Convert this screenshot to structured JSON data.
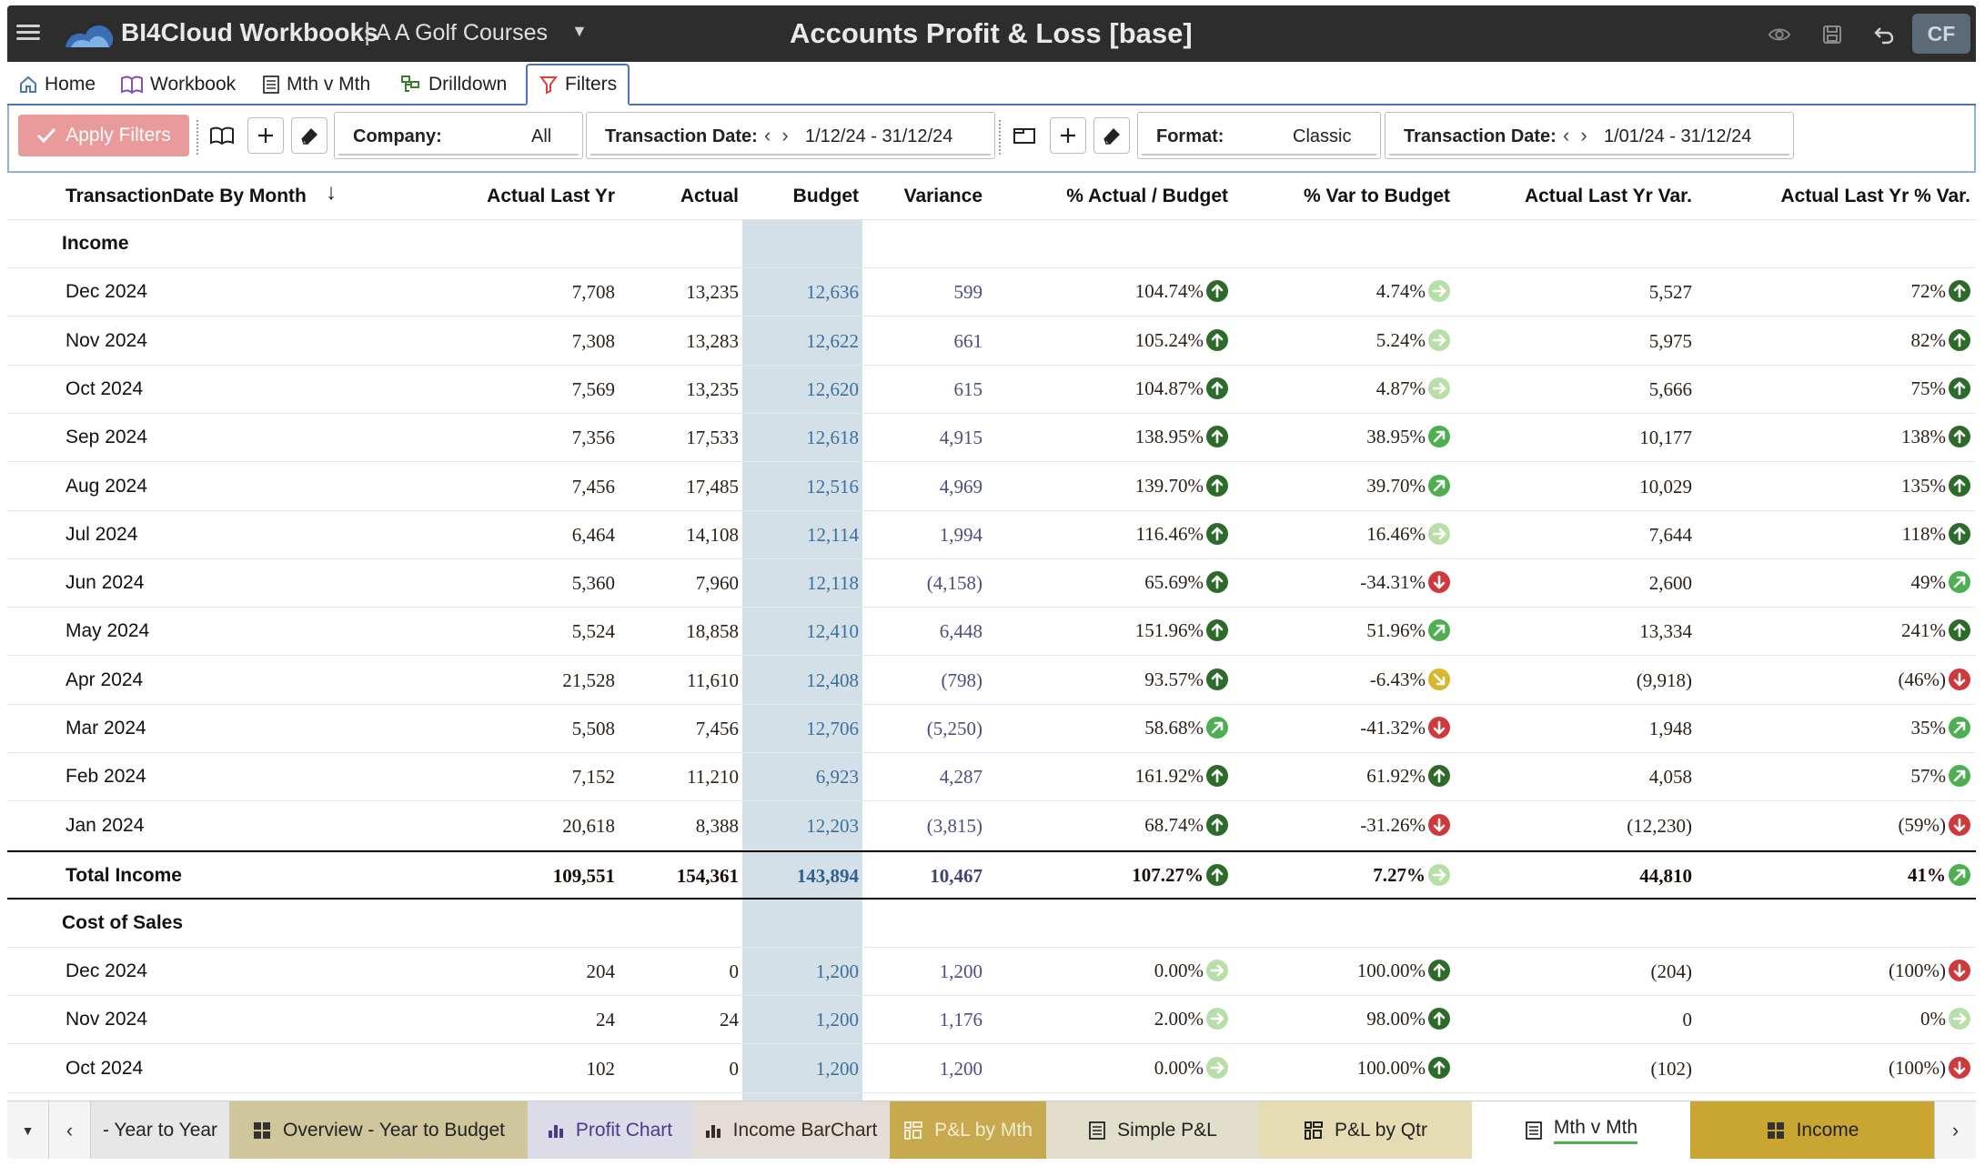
{
  "app": {
    "title": "BI4Cloud Workbooks",
    "separator": "|",
    "subtitle": "A A Golf Courses",
    "document_title": "Accounts Profit & Loss [base]",
    "user_initials": "CF"
  },
  "nav_tabs": [
    {
      "label": "Home",
      "icon": "home-icon"
    },
    {
      "label": "Workbook",
      "icon": "book-icon"
    },
    {
      "label": "Mth v Mth",
      "icon": "list-icon"
    },
    {
      "label": "Drilldown",
      "icon": "drilldown-icon"
    },
    {
      "label": "Filters",
      "icon": "filter-icon",
      "active": true
    }
  ],
  "filterbar": {
    "apply_label": "Apply Filters",
    "company_label": "Company:",
    "company_value": "All",
    "date1_label": "Transaction Date:",
    "date1_value": "1/12/24 - 31/12/24",
    "format_label": "Format:",
    "format_value": "Classic",
    "date2_label": "Transaction Date:",
    "date2_value": "1/01/24 - 31/12/24"
  },
  "table": {
    "headers": {
      "period": "TransactionDate By Month",
      "actual_last_yr": "Actual Last Yr",
      "actual": "Actual",
      "budget": "Budget",
      "variance": "Variance",
      "pct_actual_budget": "% Actual / Budget",
      "pct_var_budget": "% Var to Budget",
      "last_yr_var": "Actual Last Yr Var.",
      "last_yr_pct_var": "Actual Last Yr % Var."
    },
    "income_label": "Income",
    "income_rows": [
      {
        "period": "Dec 2024",
        "actual_last_yr": "7,708",
        "actual": "13,235",
        "budget": "12,636",
        "variance": "599",
        "pct_actual_budget": "104.74%",
        "ind1": "up-dark",
        "pct_var_budget": "4.74%",
        "ind2": "right-light",
        "last_yr_var": "5,527",
        "last_yr_pct_var": "72%",
        "ind3": "up-dark"
      },
      {
        "period": "Nov 2024",
        "actual_last_yr": "7,308",
        "actual": "13,283",
        "budget": "12,622",
        "variance": "661",
        "pct_actual_budget": "105.24%",
        "ind1": "up-dark",
        "pct_var_budget": "5.24%",
        "ind2": "right-light",
        "last_yr_var": "5,975",
        "last_yr_pct_var": "82%",
        "ind3": "up-dark"
      },
      {
        "period": "Oct 2024",
        "actual_last_yr": "7,569",
        "actual": "13,235",
        "budget": "12,620",
        "variance": "615",
        "pct_actual_budget": "104.87%",
        "ind1": "up-dark",
        "pct_var_budget": "4.87%",
        "ind2": "right-light",
        "last_yr_var": "5,666",
        "last_yr_pct_var": "75%",
        "ind3": "up-dark"
      },
      {
        "period": "Sep 2024",
        "actual_last_yr": "7,356",
        "actual": "17,533",
        "budget": "12,618",
        "variance": "4,915",
        "pct_actual_budget": "138.95%",
        "ind1": "up-dark",
        "pct_var_budget": "38.95%",
        "ind2": "upright-mid",
        "last_yr_var": "10,177",
        "last_yr_pct_var": "138%",
        "ind3": "up-dark"
      },
      {
        "period": "Aug 2024",
        "actual_last_yr": "7,456",
        "actual": "17,485",
        "budget": "12,516",
        "variance": "4,969",
        "pct_actual_budget": "139.70%",
        "ind1": "up-dark",
        "pct_var_budget": "39.70%",
        "ind2": "upright-mid",
        "last_yr_var": "10,029",
        "last_yr_pct_var": "135%",
        "ind3": "up-dark"
      },
      {
        "period": "Jul 2024",
        "actual_last_yr": "6,464",
        "actual": "14,108",
        "budget": "12,114",
        "variance": "1,994",
        "pct_actual_budget": "116.46%",
        "ind1": "up-dark",
        "pct_var_budget": "16.46%",
        "ind2": "right-light",
        "last_yr_var": "7,644",
        "last_yr_pct_var": "118%",
        "ind3": "up-dark"
      },
      {
        "period": "Jun 2024",
        "actual_last_yr": "5,360",
        "actual": "7,960",
        "budget": "12,118",
        "variance": "(4,158)",
        "pct_actual_budget": "65.69%",
        "ind1": "up-dark",
        "pct_var_budget": "-34.31%",
        "ind2": "down-red",
        "last_yr_var": "2,600",
        "last_yr_pct_var": "49%",
        "ind3": "upright-mid"
      },
      {
        "period": "May 2024",
        "actual_last_yr": "5,524",
        "actual": "18,858",
        "budget": "12,410",
        "variance": "6,448",
        "pct_actual_budget": "151.96%",
        "ind1": "up-dark",
        "pct_var_budget": "51.96%",
        "ind2": "upright-mid",
        "last_yr_var": "13,334",
        "last_yr_pct_var": "241%",
        "ind3": "up-dark"
      },
      {
        "period": "Apr 2024",
        "actual_last_yr": "21,528",
        "actual": "11,610",
        "budget": "12,408",
        "variance": "(798)",
        "pct_actual_budget": "93.57%",
        "ind1": "up-dark",
        "pct_var_budget": "-6.43%",
        "ind2": "downright-yellow",
        "last_yr_var": "(9,918)",
        "last_yr_pct_var": "(46%)",
        "ind3": "down-red"
      },
      {
        "period": "Mar 2024",
        "actual_last_yr": "5,508",
        "actual": "7,456",
        "budget": "12,706",
        "variance": "(5,250)",
        "pct_actual_budget": "58.68%",
        "ind1": "upright-mid",
        "pct_var_budget": "-41.32%",
        "ind2": "down-red",
        "last_yr_var": "1,948",
        "last_yr_pct_var": "35%",
        "ind3": "upright-mid"
      },
      {
        "period": "Feb 2024",
        "actual_last_yr": "7,152",
        "actual": "11,210",
        "budget": "6,923",
        "variance": "4,287",
        "pct_actual_budget": "161.92%",
        "ind1": "up-dark",
        "pct_var_budget": "61.92%",
        "ind2": "up-dark",
        "last_yr_var": "4,058",
        "last_yr_pct_var": "57%",
        "ind3": "upright-mid"
      },
      {
        "period": "Jan 2024",
        "actual_last_yr": "20,618",
        "actual": "8,388",
        "budget": "12,203",
        "variance": "(3,815)",
        "pct_actual_budget": "68.74%",
        "ind1": "up-dark",
        "pct_var_budget": "-31.26%",
        "ind2": "down-red",
        "last_yr_var": "(12,230)",
        "last_yr_pct_var": "(59%)",
        "ind3": "down-red"
      }
    ],
    "total_income": {
      "period": "Total Income",
      "actual_last_yr": "109,551",
      "actual": "154,361",
      "budget": "143,894",
      "variance": "10,467",
      "pct_actual_budget": "107.27%",
      "ind1": "up-dark",
      "pct_var_budget": "7.27%",
      "ind2": "right-light",
      "last_yr_var": "44,810",
      "last_yr_pct_var": "41%",
      "ind3": "upright-mid"
    },
    "cos_label": "Cost of Sales",
    "cos_rows": [
      {
        "period": "Dec 2024",
        "actual_last_yr": "204",
        "actual": "0",
        "budget": "1,200",
        "variance": "1,200",
        "pct_actual_budget": "0.00%",
        "ind1": "right-light",
        "pct_var_budget": "100.00%",
        "ind2": "up-dark",
        "last_yr_var": "(204)",
        "last_yr_pct_var": "(100%)",
        "ind3": "down-red"
      },
      {
        "period": "Nov 2024",
        "actual_last_yr": "24",
        "actual": "24",
        "budget": "1,200",
        "variance": "1,176",
        "pct_actual_budget": "2.00%",
        "ind1": "right-light",
        "pct_var_budget": "98.00%",
        "ind2": "up-dark",
        "last_yr_var": "0",
        "last_yr_pct_var": "0%",
        "ind3": "right-light"
      },
      {
        "period": "Oct 2024",
        "actual_last_yr": "102",
        "actual": "0",
        "budget": "1,200",
        "variance": "1,200",
        "pct_actual_budget": "0.00%",
        "ind1": "right-light",
        "pct_var_budget": "100.00%",
        "ind2": "up-dark",
        "last_yr_var": "(102)",
        "last_yr_pct_var": "(100%)",
        "ind3": "down-red"
      }
    ]
  },
  "sheet_tabs": [
    {
      "label": "- Year to Year",
      "bg": "#e7e7e7",
      "color": "#222222",
      "icon": ""
    },
    {
      "label": "Overview - Year to Budget",
      "bg": "#cfc69b",
      "color": "#222222",
      "icon": "dashboard-icon"
    },
    {
      "label": "Profit Chart",
      "bg": "#dcdbe8",
      "color": "#4b3a8c",
      "icon": "bar-chart-icon"
    },
    {
      "label": "Income BarChart",
      "bg": "#e4ddd7",
      "color": "#3a2a22",
      "icon": "bar-chart-icon"
    },
    {
      "label": "P&L by Mth",
      "bg": "#c7a94f",
      "color": "#f3ecd4",
      "icon": "pivot-icon"
    },
    {
      "label": "Simple P&L",
      "bg": "#e1dfcb",
      "color": "#222222",
      "icon": "list-icon"
    },
    {
      "label": "P&L by Qtr",
      "bg": "#e6dcb4",
      "color": "#222222",
      "icon": "pivot-icon"
    },
    {
      "label": "Mth v Mth",
      "bg": "#ffffff",
      "color": "#222222",
      "icon": "list-icon",
      "active": true
    },
    {
      "label": "Income",
      "bg": "#c9a531",
      "color": "#222222",
      "icon": "dashboard-icon"
    }
  ],
  "colors": {
    "titlebar_bg": "#2d2d2d",
    "apply_button": "#e99a9a",
    "budget_column": "#d3e0e8",
    "indicator_dark_green": "#2e6b2a",
    "indicator_mid_green": "#4caf50",
    "indicator_light_green": "#b9dfa8",
    "indicator_red": "#d0393b",
    "indicator_yellow": "#d9b62a"
  }
}
